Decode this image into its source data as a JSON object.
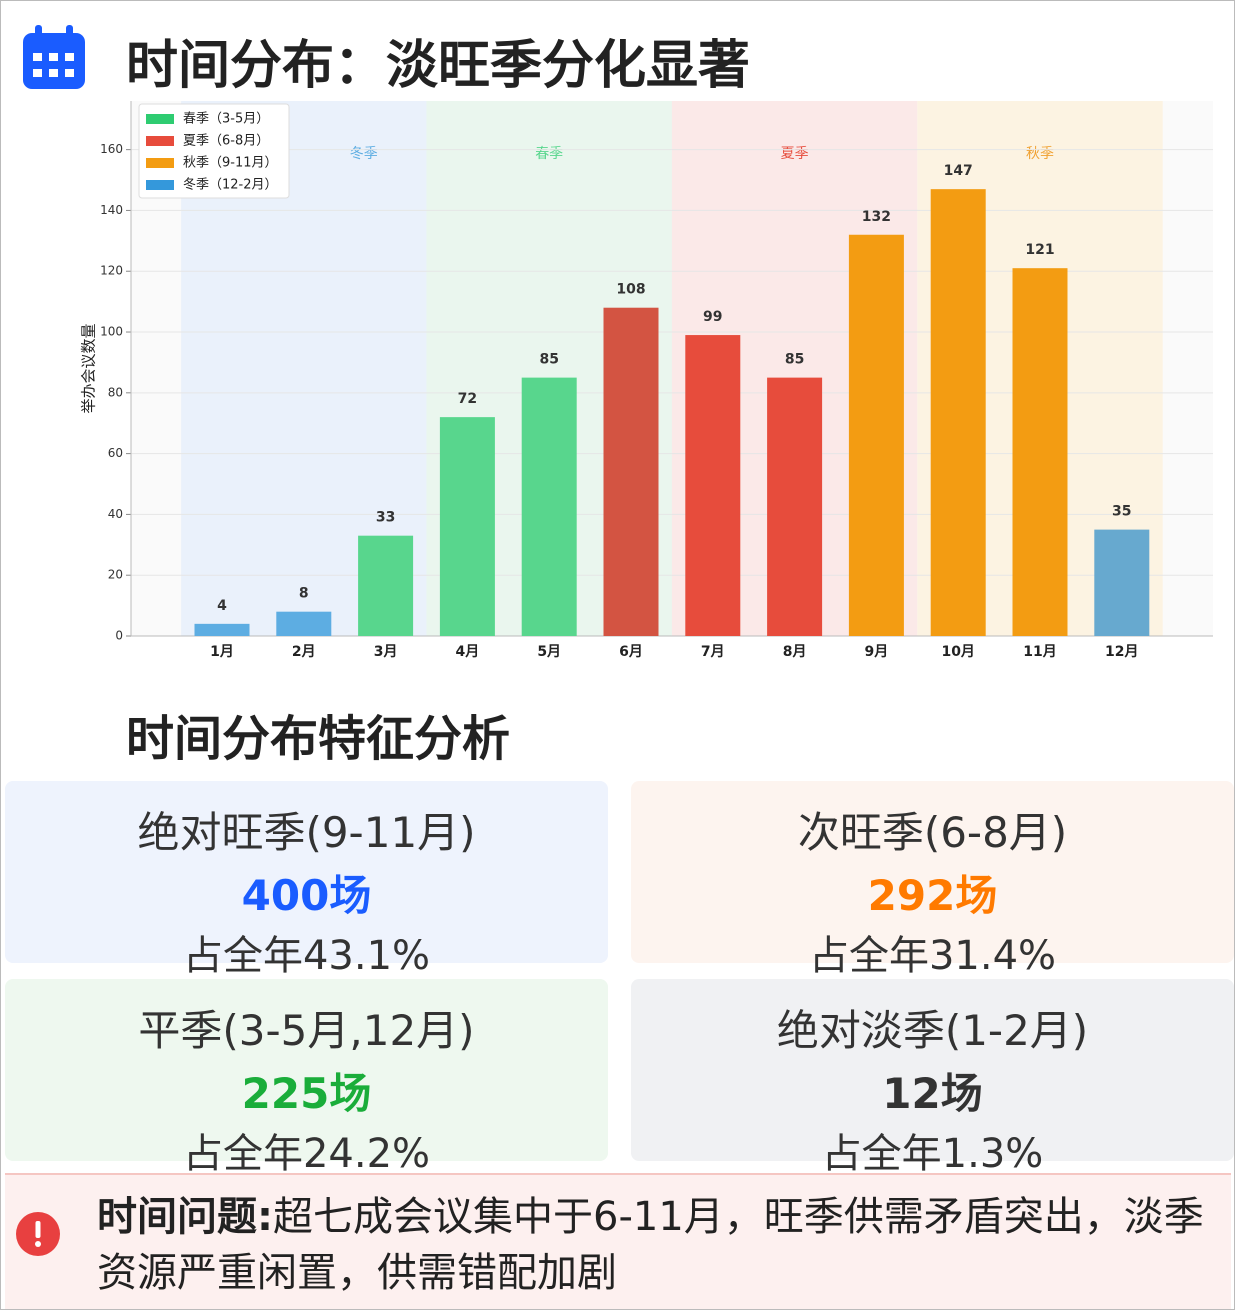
{
  "header": {
    "title": "时间分布：淡旺季分化显著"
  },
  "chart_data": {
    "type": "bar",
    "ylabel": "举办会议数量",
    "categories": [
      "1月",
      "2月",
      "3月",
      "4月",
      "5月",
      "6月",
      "7月",
      "8月",
      "9月",
      "10月",
      "11月",
      "12月"
    ],
    "values": [
      4,
      8,
      33,
      72,
      85,
      108,
      99,
      85,
      132,
      147,
      121,
      35
    ],
    "colors": [
      "#5dade2",
      "#5dade2",
      "#58d68d",
      "#58d68d",
      "#58d68d",
      "#d35442",
      "#e74c3c",
      "#e74c3c",
      "#f39c12",
      "#f39c12",
      "#f39c12",
      "#67a9cf"
    ],
    "legend": [
      {
        "name": "春季（3-5月）",
        "color": "#2ecc71"
      },
      {
        "name": "夏季（6-8月）",
        "color": "#e74c3c"
      },
      {
        "name": "秋季（9-11月）",
        "color": "#f39c12"
      },
      {
        "name": "冬季（12-2月）",
        "color": "#3498db"
      }
    ],
    "season_labels": [
      {
        "label": "冬季",
        "color": "#5dade2",
        "bg": "#eaf1fb"
      },
      {
        "label": "春季",
        "color": "#58d68d",
        "bg": "#eaf6ee"
      },
      {
        "label": "夏季",
        "color": "#e74c3c",
        "bg": "#fbe9e8"
      },
      {
        "label": "秋季",
        "color": "#f0a030",
        "bg": "#fcf3e2"
      }
    ],
    "ylim": [
      0,
      176
    ],
    "yticks": [
      0,
      20,
      40,
      60,
      80,
      100,
      120,
      140,
      160
    ],
    "grid": true
  },
  "analysis": {
    "title": "时间分布特征分析",
    "cards": [
      {
        "title": "绝对旺季(9-11月)",
        "count": "400场",
        "share": "占全年43.1%"
      },
      {
        "title": "次旺季(6-8月)",
        "count": "292场",
        "share": "占全年31.4%"
      },
      {
        "title": "平季(3-5月,12月)",
        "count": "225场",
        "share": "占全年24.2%"
      },
      {
        "title": "绝对淡季(1-2月)",
        "count": "12场",
        "share": "占全年1.3%"
      }
    ]
  },
  "alert": {
    "label": "时间问题:",
    "text": "超七成会议集中于6-11月，旺季供需矛盾突出，淡季资源严重闲置，供需错配加剧"
  }
}
